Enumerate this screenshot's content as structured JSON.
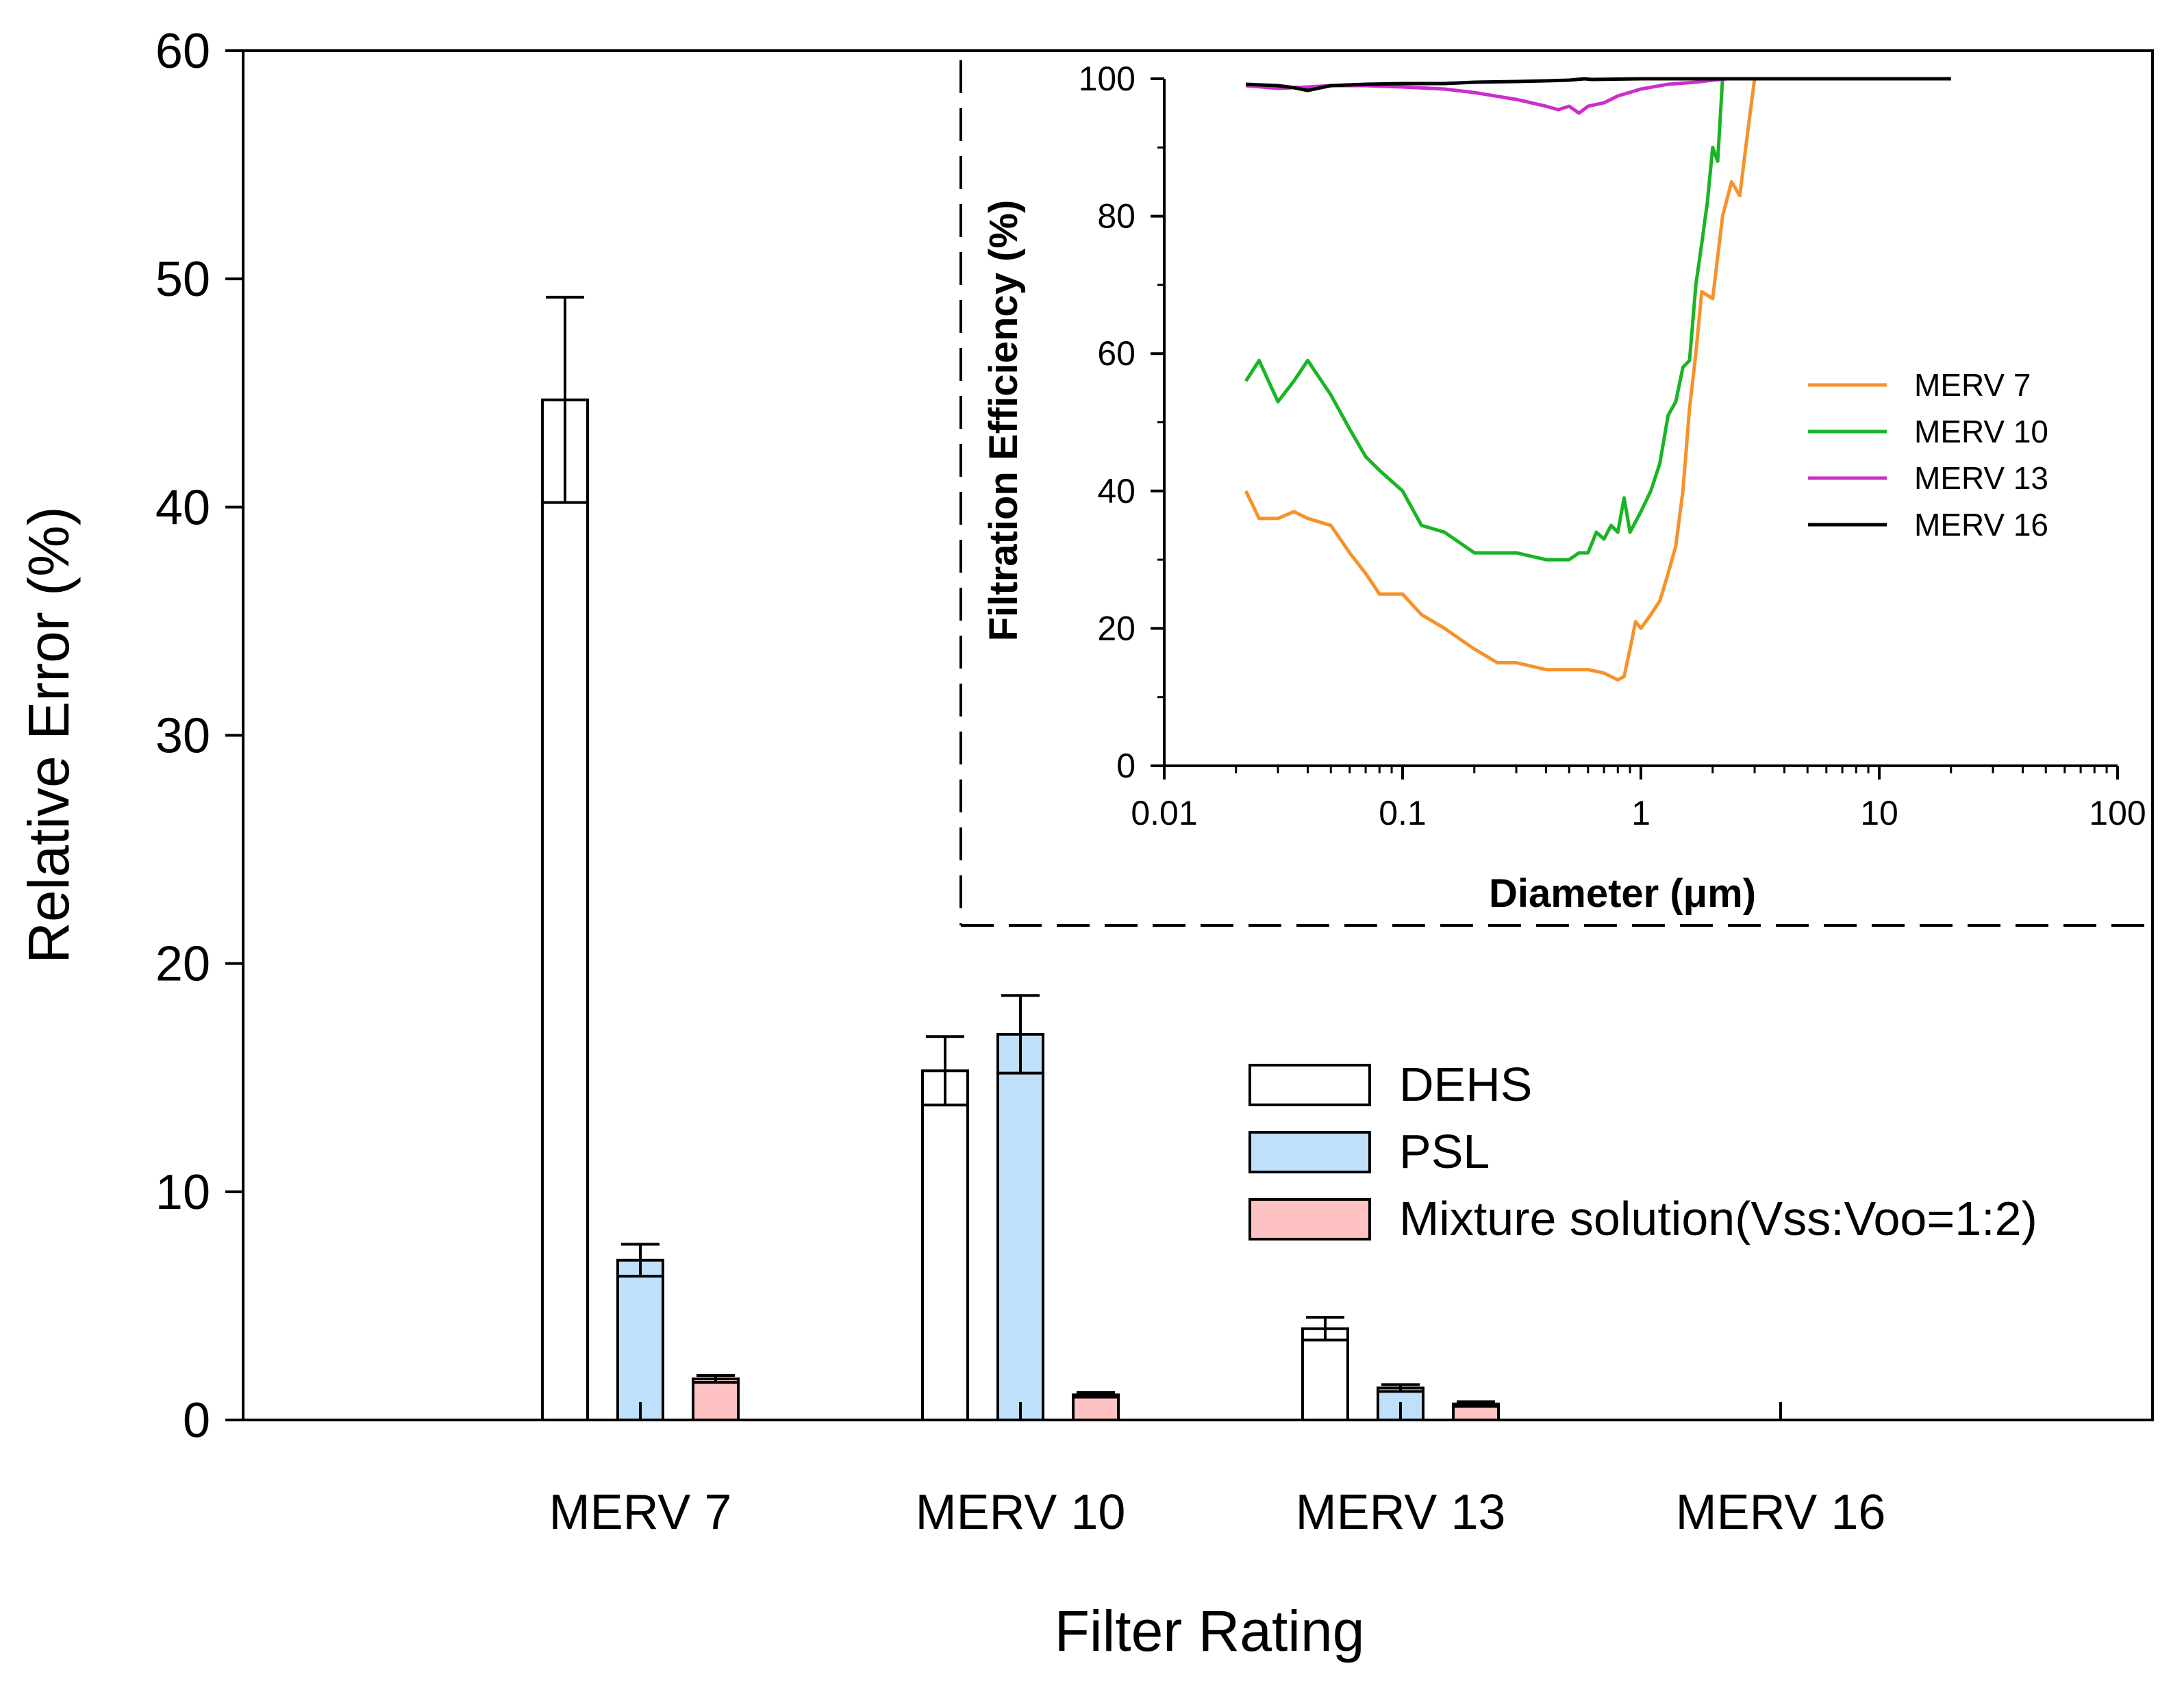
{
  "chart_data": [
    {
      "type": "bar",
      "xlabel": "Filter Rating",
      "ylabel": "Relative Error (%)",
      "ylim": [
        0,
        60
      ],
      "yticks": [
        "0",
        "10",
        "20",
        "30",
        "40",
        "50",
        "60"
      ],
      "categories": [
        "MERV 7",
        "MERV 10",
        "MERV 13",
        "MERV 16"
      ],
      "series": [
        {
          "name": "DEHS",
          "color": "#ffffff",
          "values": [
            44.7,
            15.3,
            4.0,
            0
          ],
          "errors": [
            4.5,
            1.5,
            0.5,
            0
          ]
        },
        {
          "name": "PSL",
          "color": "#bfe0fb",
          "values": [
            7.0,
            16.9,
            1.4,
            0
          ],
          "errors": [
            0.7,
            1.7,
            0.15,
            0
          ]
        },
        {
          "name": "Mixture solution(Vss:Voo=1:2)",
          "color": "#ffc2c2",
          "values": [
            1.8,
            1.1,
            0.7,
            0
          ],
          "errors": [
            0.15,
            0.1,
            0.1,
            0
          ]
        }
      ],
      "legend_position": "center-right"
    },
    {
      "type": "line",
      "xlabel": "Diameter (μm)",
      "ylabel": "Filtration Efficiency (%)",
      "xscale": "log",
      "xlim": [
        0.01,
        100
      ],
      "ylim": [
        0,
        100
      ],
      "xticks": [
        "0.01",
        "0.1",
        "1",
        "10",
        "100"
      ],
      "yticks": [
        "0",
        "20",
        "40",
        "60",
        "80",
        "100"
      ],
      "legend_position": "right",
      "series": [
        {
          "name": "MERV 7",
          "color": "#f7922a",
          "x": [
            0.022,
            0.025,
            0.03,
            0.035,
            0.04,
            0.05,
            0.06,
            0.07,
            0.08,
            0.09,
            0.1,
            0.12,
            0.15,
            0.2,
            0.25,
            0.3,
            0.4,
            0.5,
            0.6,
            0.7,
            0.8,
            0.85,
            0.9,
            0.95,
            1.0,
            1.1,
            1.2,
            1.3,
            1.4,
            1.5,
            1.6,
            1.7,
            1.8,
            2.0,
            2.2,
            2.4,
            2.6,
            2.8,
            3.0
          ],
          "y": [
            40,
            36,
            36,
            37,
            36,
            35,
            31,
            28,
            25,
            25,
            25,
            22,
            20,
            17,
            15,
            15,
            14,
            14,
            14,
            13.5,
            12.5,
            13,
            17,
            21,
            20,
            22,
            24,
            28,
            32,
            40,
            52,
            60,
            69,
            68,
            80,
            85,
            83,
            92,
            100
          ]
        },
        {
          "name": "MERV 10",
          "color": "#18b524",
          "x": [
            0.022,
            0.025,
            0.03,
            0.035,
            0.04,
            0.05,
            0.06,
            0.07,
            0.08,
            0.1,
            0.12,
            0.15,
            0.2,
            0.25,
            0.3,
            0.4,
            0.5,
            0.55,
            0.6,
            0.65,
            0.7,
            0.75,
            0.8,
            0.85,
            0.9,
            1.0,
            1.1,
            1.2,
            1.3,
            1.4,
            1.5,
            1.6,
            1.7,
            1.8,
            1.9,
            2.0,
            2.1,
            2.2
          ],
          "y": [
            56,
            59,
            53,
            56,
            59,
            54,
            49,
            45,
            43,
            40,
            35,
            34,
            31,
            31,
            31,
            30,
            30,
            31,
            31,
            34,
            33,
            35,
            34,
            39,
            34,
            37,
            40,
            44,
            51,
            53,
            58,
            59,
            70,
            76,
            82,
            90,
            88,
            100
          ]
        },
        {
          "name": "MERV 13",
          "color": "#cc2ecc",
          "x": [
            0.022,
            0.03,
            0.04,
            0.05,
            0.07,
            0.1,
            0.15,
            0.2,
            0.3,
            0.4,
            0.45,
            0.5,
            0.55,
            0.6,
            0.7,
            0.8,
            1.0,
            1.3,
            1.7,
            2.0,
            2.3
          ],
          "y": [
            99,
            98.6,
            98.8,
            99,
            99,
            98.8,
            98.5,
            98,
            97,
            96,
            95.5,
            96,
            95,
            96,
            96.5,
            97.5,
            98.5,
            99.2,
            99.5,
            99.8,
            100
          ]
        },
        {
          "name": "MERV 16",
          "color": "#000000",
          "x": [
            0.022,
            0.03,
            0.035,
            0.04,
            0.05,
            0.07,
            0.1,
            0.15,
            0.2,
            0.3,
            0.4,
            0.5,
            0.58,
            0.62,
            1.0,
            2.0,
            5.0,
            10.0,
            20.0
          ],
          "y": [
            99.2,
            99.0,
            98.7,
            98.3,
            99.0,
            99.2,
            99.3,
            99.3,
            99.5,
            99.6,
            99.7,
            99.8,
            100,
            99.9,
            100,
            100,
            100,
            100,
            100
          ]
        }
      ]
    }
  ]
}
